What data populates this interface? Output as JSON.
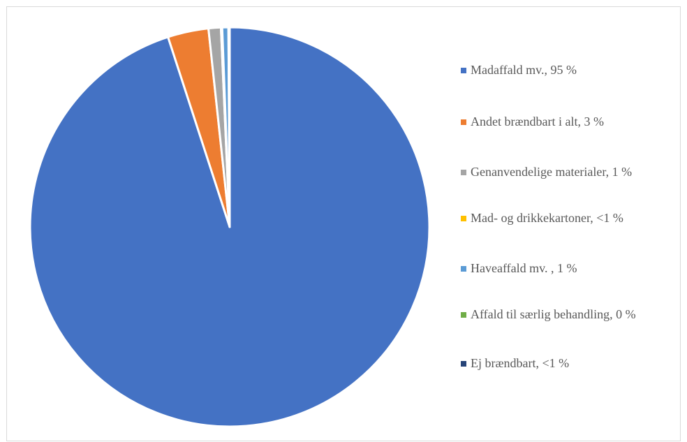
{
  "chart_data": {
    "type": "pie",
    "title": "",
    "legend_position": "right",
    "start_angle_deg": 0,
    "direction": "clockwise",
    "slices": [
      {
        "label": "Madaffald mv., 95 %",
        "value": 95.0,
        "color": "#4472C4"
      },
      {
        "label": "Andet brændbart i alt, 3 %",
        "value": 3.3,
        "color": "#ED7D31"
      },
      {
        "label": "Genanvendelige materialer, 1 %",
        "value": 1.0,
        "color": "#A5A5A5"
      },
      {
        "label": "Mad- og drikkekartoner, <1 %",
        "value": 0.1,
        "color": "#FFC000"
      },
      {
        "label": "Haveaffald mv. , 1 %",
        "value": 0.5,
        "color": "#5B9BD5"
      },
      {
        "label": "Affald til særlig behandling, 0 %",
        "value": 0.0,
        "color": "#70AD47"
      },
      {
        "label": "Ej brændbart, <1 %",
        "value": 0.1,
        "color": "#264478"
      }
    ]
  }
}
